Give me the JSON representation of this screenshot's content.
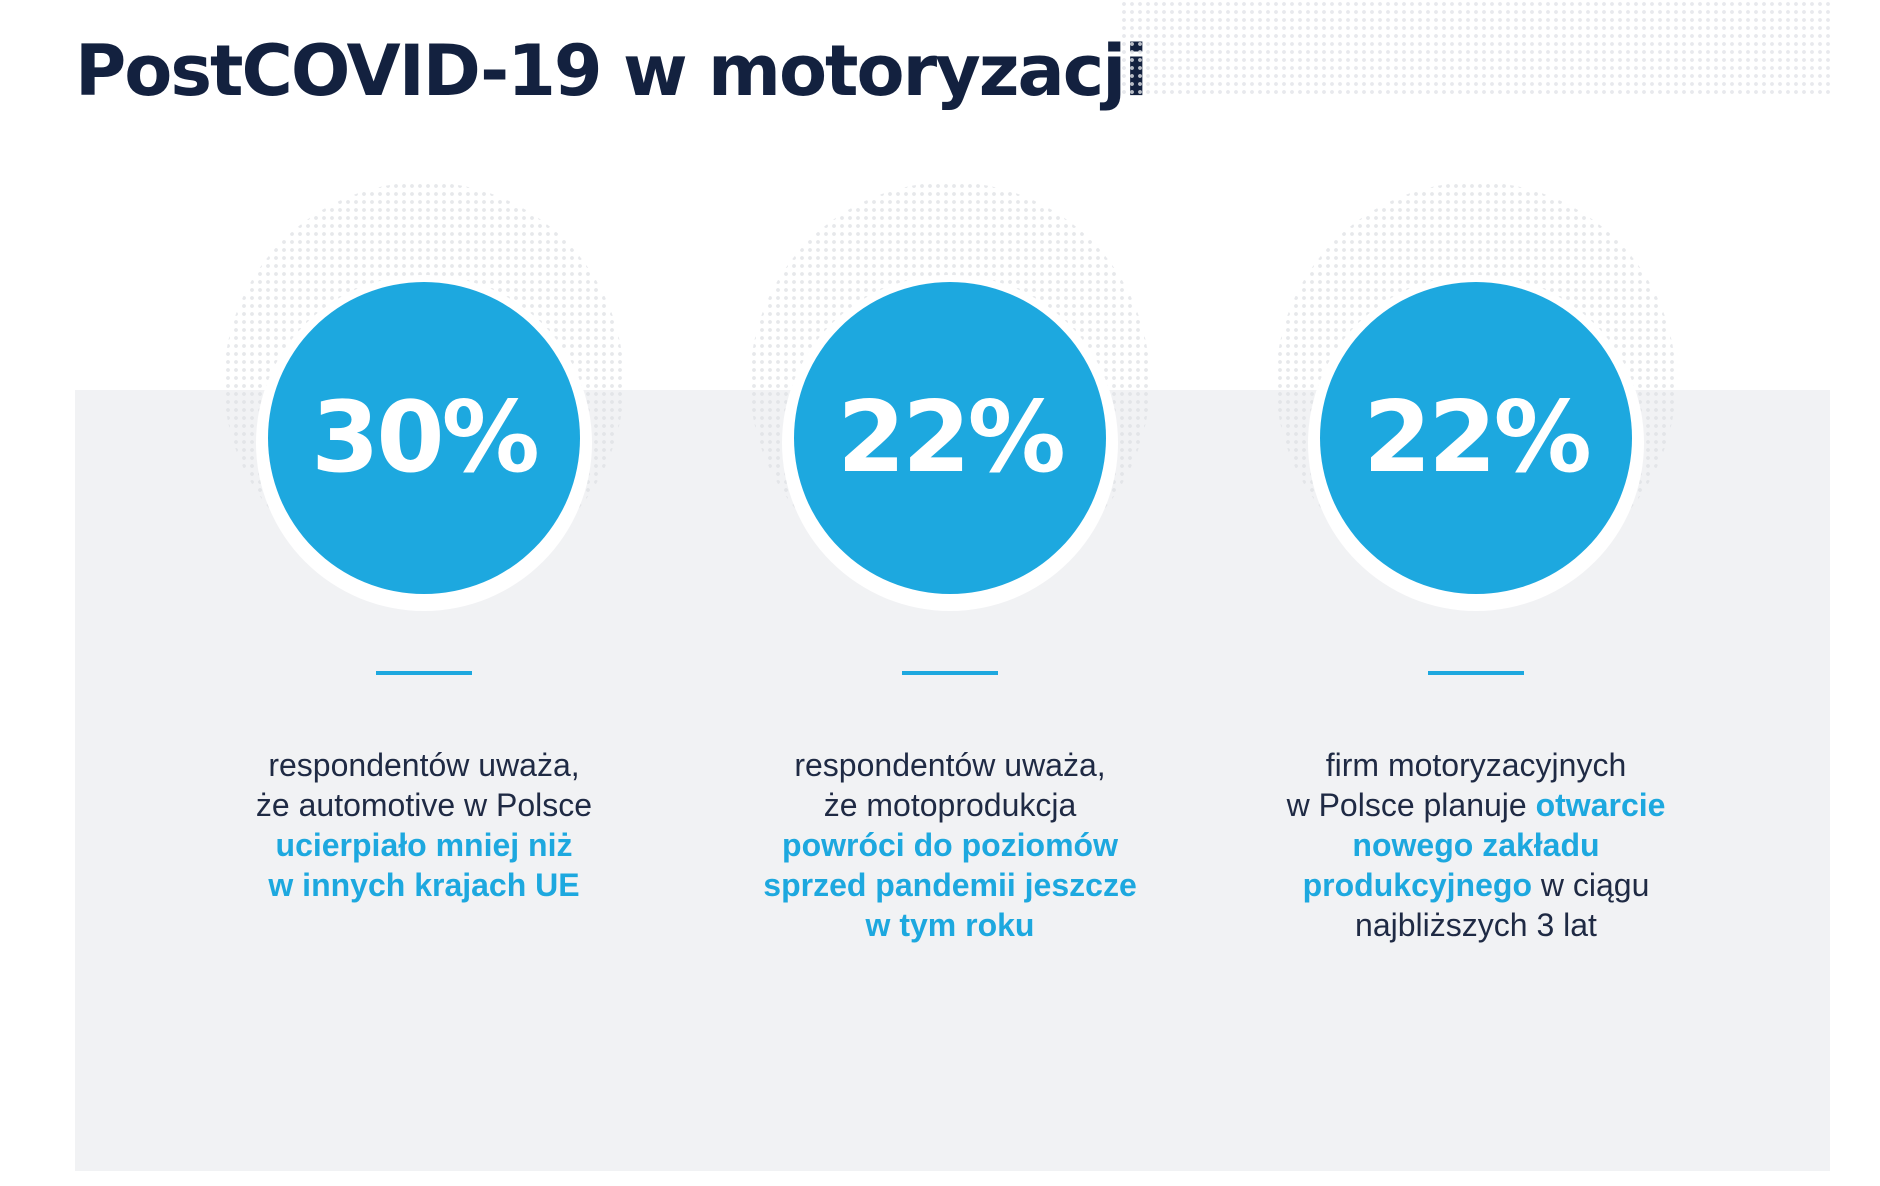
{
  "title": "PostCOVID-19 w motoryzacji",
  "colors": {
    "accent": "#1da8df",
    "title": "#13213f",
    "panel": "#f1f2f4"
  },
  "stats": [
    {
      "value": "30%",
      "description": {
        "line1": "respondentów uważa,",
        "line2": "że automotive w Polsce",
        "highlight1": "ucierpiało mniej niż",
        "highlight2": "w innych krajach UE"
      }
    },
    {
      "value": "22%",
      "description": {
        "line1": "respondentów uważa,",
        "line2": "że motoprodukcja",
        "highlight1": "powróci do poziomów",
        "highlight2": "sprzed pandemii jeszcze",
        "highlight3": "w tym roku"
      }
    },
    {
      "value": "22%",
      "description": {
        "line1": "firm motoryzacyjnych",
        "line2": "w Polsce planuje",
        "highlight1": "otwarcie",
        "highlight2": "nowego zakładu",
        "highlight3": "produkcyjnego",
        "line3": "w ciągu",
        "line4": "najbliższych 3 lat"
      }
    }
  ]
}
